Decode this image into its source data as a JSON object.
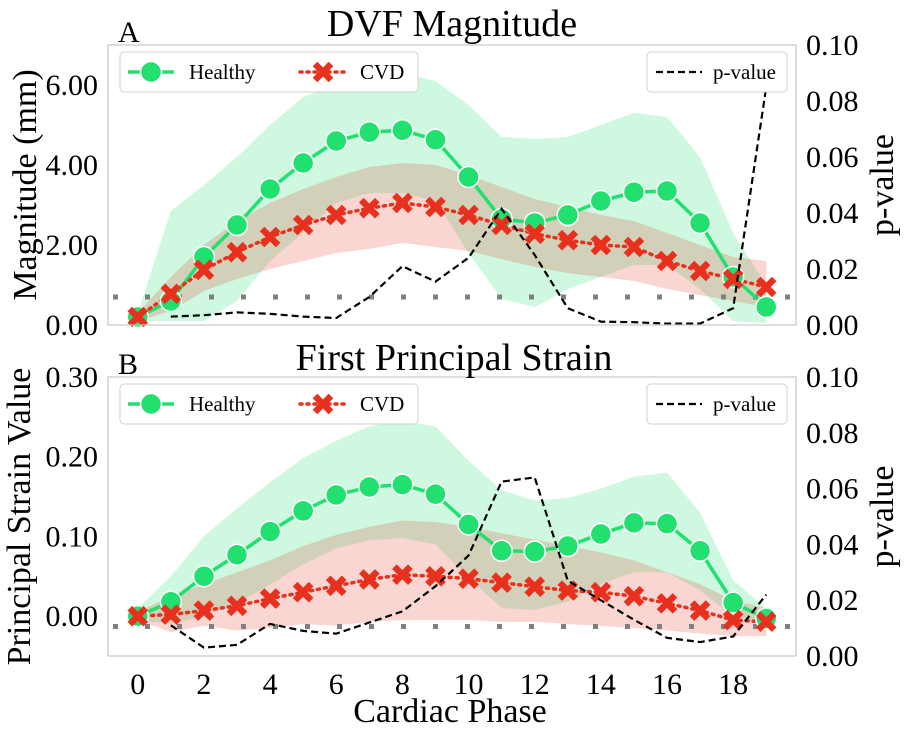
{
  "chart_data": [
    {
      "panel": "A",
      "type": "line",
      "title": "DVF Magnitude",
      "xlabel": "",
      "ylabel": "Magnitude (mm)",
      "y2label": "p-value",
      "xlim": [
        -0.9,
        19.9
      ],
      "ylim": [
        0,
        7
      ],
      "y2lim": [
        0,
        0.1
      ],
      "xticks": [],
      "yticks": [
        0,
        2,
        4,
        6
      ],
      "ytick_labels": [
        "0.00",
        "2.00",
        "4.00",
        "6.00"
      ],
      "y2ticks": [
        0,
        0.02,
        0.04,
        0.06,
        0.08,
        0.1
      ],
      "y2tick_labels": [
        "0.00",
        "0.02",
        "0.04",
        "0.06",
        "0.08",
        "0.10"
      ],
      "reference_line": 0.7,
      "x": [
        0,
        1,
        2,
        3,
        4,
        5,
        6,
        7,
        8,
        9,
        10,
        11,
        12,
        13,
        14,
        15,
        16,
        17,
        18,
        19
      ],
      "series": [
        {
          "name": "Healthy",
          "color": "#22e06f",
          "values": [
            0.2,
            0.6,
            1.7,
            2.5,
            3.4,
            4.05,
            4.6,
            4.82,
            4.87,
            4.63,
            3.7,
            2.65,
            2.55,
            2.75,
            3.1,
            3.32,
            3.35,
            2.55,
            1.2,
            0.45
          ],
          "upper": [
            0.3,
            2.85,
            3.5,
            4.2,
            5.0,
            5.7,
            6.0,
            6.2,
            6.3,
            6.1,
            5.5,
            4.7,
            4.65,
            4.7,
            5.0,
            5.3,
            5.2,
            4.2,
            2.3,
            1.0
          ],
          "lower": [
            0.1,
            0.1,
            0.1,
            0.6,
            1.6,
            2.3,
            3.05,
            3.3,
            3.3,
            3.1,
            1.8,
            0.65,
            0.45,
            0.9,
            1.2,
            1.5,
            1.5,
            0.9,
            0.1,
            0.05
          ]
        },
        {
          "name": "CVD",
          "color": "#e8301e",
          "values": [
            0.2,
            0.78,
            1.38,
            1.82,
            2.2,
            2.5,
            2.75,
            2.92,
            3.05,
            2.95,
            2.75,
            2.5,
            2.28,
            2.12,
            2.0,
            1.95,
            1.6,
            1.35,
            1.15,
            0.95
          ],
          "upper": [
            0.3,
            1.2,
            2.0,
            2.6,
            3.05,
            3.4,
            3.7,
            3.95,
            4.05,
            4.0,
            3.75,
            3.45,
            3.15,
            2.95,
            2.75,
            2.6,
            2.3,
            2.0,
            1.7,
            1.6
          ],
          "lower": [
            0.1,
            0.35,
            0.85,
            1.15,
            1.4,
            1.6,
            1.8,
            1.9,
            2.05,
            1.95,
            1.85,
            1.65,
            1.45,
            1.3,
            1.2,
            1.1,
            0.9,
            0.75,
            0.6,
            0.45
          ]
        }
      ],
      "p_value": {
        "name": "p-value",
        "color": "#000000",
        "x": [
          1,
          2,
          3,
          4,
          5,
          6,
          7,
          8,
          9,
          10,
          11,
          12,
          13,
          14,
          15,
          16,
          17,
          18,
          19
        ],
        "values": [
          0.003,
          0.0035,
          0.0045,
          0.004,
          0.003,
          0.0025,
          0.01,
          0.021,
          0.0155,
          0.024,
          0.0415,
          0.025,
          0.006,
          0.0012,
          0.001,
          0.0005,
          0.0005,
          0.006,
          0.085
        ]
      }
    },
    {
      "panel": "B",
      "type": "line",
      "title": "First Principal Strain",
      "xlabel": "Cardiac Phase",
      "ylabel": "Principal Strain Value",
      "y2label": "p-value",
      "xlim": [
        -0.9,
        19.9
      ],
      "ylim": [
        -0.05,
        0.3
      ],
      "y2lim": [
        0,
        0.1
      ],
      "xticks": [
        0,
        2,
        4,
        6,
        8,
        10,
        12,
        14,
        16,
        18
      ],
      "yticks": [
        0,
        0.1,
        0.2,
        0.3
      ],
      "ytick_labels": [
        "0.00",
        "0.10",
        "0.20",
        "0.30"
      ],
      "y2ticks": [
        0,
        0.02,
        0.04,
        0.06,
        0.08,
        0.1
      ],
      "y2tick_labels": [
        "0.00",
        "0.02",
        "0.04",
        "0.06",
        "0.08",
        "0.10"
      ],
      "reference_line": -0.013,
      "x": [
        0,
        1,
        2,
        3,
        4,
        5,
        6,
        7,
        8,
        9,
        10,
        11,
        12,
        13,
        14,
        15,
        16,
        17,
        18,
        19
      ],
      "series": [
        {
          "name": "Healthy",
          "color": "#22e06f",
          "values": [
            0.0,
            0.018,
            0.05,
            0.077,
            0.106,
            0.132,
            0.152,
            0.162,
            0.165,
            0.153,
            0.115,
            0.082,
            0.081,
            0.088,
            0.103,
            0.117,
            0.116,
            0.082,
            0.017,
            -0.003
          ],
          "upper": [
            0.01,
            0.05,
            0.1,
            0.135,
            0.168,
            0.198,
            0.22,
            0.238,
            0.245,
            0.238,
            0.195,
            0.158,
            0.145,
            0.148,
            0.16,
            0.175,
            0.18,
            0.13,
            0.045,
            0.01
          ],
          "lower": [
            -0.005,
            -0.01,
            0.0,
            0.015,
            0.04,
            0.065,
            0.085,
            0.095,
            0.098,
            0.09,
            0.048,
            0.01,
            0.008,
            0.018,
            0.04,
            0.055,
            0.055,
            0.032,
            0.0,
            -0.012
          ]
        },
        {
          "name": "CVD",
          "color": "#e8301e",
          "values": [
            0.0,
            0.002,
            0.007,
            0.013,
            0.022,
            0.03,
            0.038,
            0.046,
            0.052,
            0.05,
            0.047,
            0.042,
            0.037,
            0.032,
            0.03,
            0.025,
            0.016,
            0.007,
            -0.005,
            -0.007
          ],
          "upper": [
            0.005,
            0.025,
            0.04,
            0.055,
            0.07,
            0.088,
            0.102,
            0.112,
            0.12,
            0.118,
            0.112,
            0.104,
            0.096,
            0.088,
            0.08,
            0.07,
            0.055,
            0.04,
            0.02,
            0.01
          ],
          "lower": [
            -0.005,
            -0.02,
            -0.012,
            -0.018,
            -0.015,
            -0.01,
            -0.012,
            -0.007,
            -0.005,
            -0.005,
            -0.005,
            -0.007,
            -0.007,
            -0.01,
            -0.012,
            -0.015,
            -0.018,
            -0.022,
            -0.025,
            -0.025
          ]
        }
      ],
      "p_value": {
        "name": "p-value",
        "color": "#000000",
        "x": [
          1,
          2,
          3,
          4,
          5,
          6,
          7,
          8,
          9,
          10,
          11,
          12,
          13,
          14,
          15,
          16,
          17,
          18,
          19
        ],
        "values": [
          0.011,
          0.003,
          0.004,
          0.0115,
          0.009,
          0.008,
          0.012,
          0.016,
          0.025,
          0.036,
          0.0625,
          0.064,
          0.027,
          0.02,
          0.013,
          0.0065,
          0.005,
          0.007,
          0.022
        ]
      }
    }
  ]
}
